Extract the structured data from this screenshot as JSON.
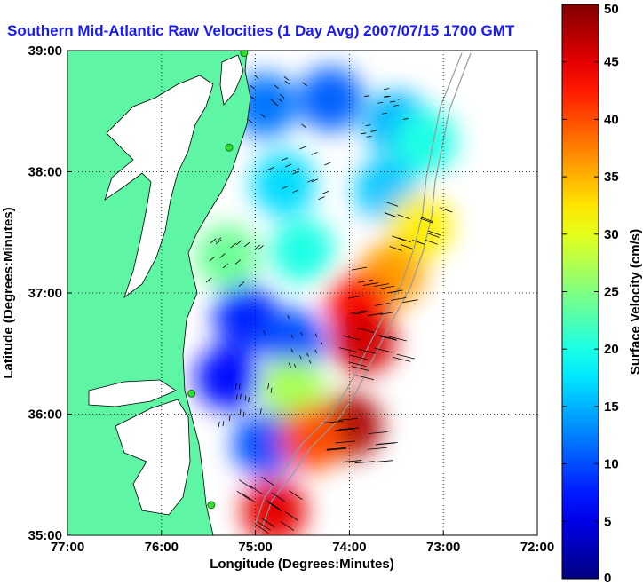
{
  "chart_data": {
    "type": "heatmap",
    "title": "Southern Mid-Atlantic Raw Velocities (1 Day Avg) 2007/07/15 1700 GMT",
    "xlabel": "Longitude (Degrees:Minutes)",
    "ylabel": "Latitude (Degrees:Minutes)",
    "xlim": [
      -77,
      -72
    ],
    "ylim": [
      35,
      39
    ],
    "x_ticks": [
      {
        "value": -77,
        "label": "77:00"
      },
      {
        "value": -76,
        "label": "76:00"
      },
      {
        "value": -75,
        "label": "75:00"
      },
      {
        "value": -74,
        "label": "74:00"
      },
      {
        "value": -73,
        "label": "73:00"
      },
      {
        "value": -72,
        "label": "72:00"
      }
    ],
    "y_ticks": [
      {
        "value": 35,
        "label": "35:00"
      },
      {
        "value": 36,
        "label": "36:00"
      },
      {
        "value": 37,
        "label": "37:00"
      },
      {
        "value": 38,
        "label": "38:00"
      },
      {
        "value": 39,
        "label": "39:00"
      }
    ],
    "grid": true,
    "colorbar": {
      "label": "Surface Velocity (cm/s)",
      "range": [
        0,
        50
      ],
      "ticks": [
        {
          "value": 0,
          "label": "0"
        },
        {
          "value": 5,
          "label": "5"
        },
        {
          "value": 10,
          "label": "10"
        },
        {
          "value": 15,
          "label": "15"
        },
        {
          "value": 20,
          "label": "20"
        },
        {
          "value": 25,
          "label": "25"
        },
        {
          "value": 30,
          "label": "30"
        },
        {
          "value": 35,
          "label": "35"
        },
        {
          "value": 40,
          "label": "40"
        },
        {
          "value": 45,
          "label": "45"
        },
        {
          "value": 50,
          "label": "50"
        }
      ],
      "colormap": "jet"
    },
    "land_color": "#5ef5a5",
    "stations": [
      {
        "lon": -75.12,
        "lat": 38.98
      },
      {
        "lon": -75.28,
        "lat": 38.2
      },
      {
        "lon": -75.68,
        "lat": 36.17
      },
      {
        "lon": -75.47,
        "lat": 35.25
      }
    ],
    "velocity_zones": [
      {
        "lon": -74.9,
        "lat": 38.55,
        "speed": 12
      },
      {
        "lon": -74.2,
        "lat": 38.6,
        "speed": 11
      },
      {
        "lon": -73.5,
        "lat": 38.4,
        "speed": 15
      },
      {
        "lon": -73.2,
        "lat": 38.25,
        "speed": 20
      },
      {
        "lon": -74.7,
        "lat": 37.9,
        "speed": 17
      },
      {
        "lon": -73.6,
        "lat": 37.85,
        "speed": 16
      },
      {
        "lon": -73.25,
        "lat": 37.55,
        "speed": 32
      },
      {
        "lon": -75.3,
        "lat": 37.3,
        "speed": 24
      },
      {
        "lon": -74.5,
        "lat": 37.35,
        "speed": 20
      },
      {
        "lon": -73.55,
        "lat": 37.15,
        "speed": 36
      },
      {
        "lon": -73.9,
        "lat": 36.9,
        "speed": 43
      },
      {
        "lon": -75.1,
        "lat": 36.8,
        "speed": 8
      },
      {
        "lon": -74.6,
        "lat": 36.6,
        "speed": 10
      },
      {
        "lon": -73.85,
        "lat": 36.6,
        "speed": 46
      },
      {
        "lon": -75.3,
        "lat": 36.3,
        "speed": 7
      },
      {
        "lon": -74.6,
        "lat": 36.2,
        "speed": 27
      },
      {
        "lon": -74.0,
        "lat": 35.9,
        "speed": 48
      },
      {
        "lon": -74.9,
        "lat": 35.75,
        "speed": 10
      },
      {
        "lon": -74.4,
        "lat": 35.8,
        "speed": 40
      },
      {
        "lon": -74.8,
        "lat": 35.2,
        "speed": 45
      }
    ],
    "current_vectors": [
      {
        "lon": -74.8,
        "lat": 38.6,
        "u": 10,
        "v": -8
      },
      {
        "lon": -73.6,
        "lat": 38.5,
        "u": 12,
        "v": 2
      },
      {
        "lon": -74.5,
        "lat": 38.0,
        "u": -14,
        "v": -6
      },
      {
        "lon": -73.3,
        "lat": 37.6,
        "u": 28,
        "v": -10
      },
      {
        "lon": -75.2,
        "lat": 37.2,
        "u": 12,
        "v": 10
      },
      {
        "lon": -73.7,
        "lat": 37.0,
        "u": 34,
        "v": 6
      },
      {
        "lon": -74.6,
        "lat": 36.6,
        "u": -4,
        "v": 8
      },
      {
        "lon": -73.8,
        "lat": 36.5,
        "u": 40,
        "v": -10
      },
      {
        "lon": -75.1,
        "lat": 36.0,
        "u": 2,
        "v": 12
      },
      {
        "lon": -74.0,
        "lat": 35.8,
        "u": 44,
        "v": 4
      },
      {
        "lon": -74.9,
        "lat": 35.3,
        "u": 30,
        "v": -20
      }
    ]
  }
}
